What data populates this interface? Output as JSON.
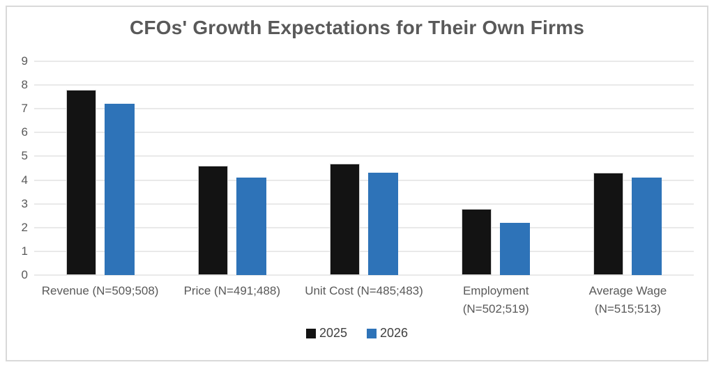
{
  "chart_data": {
    "type": "bar",
    "title": "CFOs' Growth Expectations for Their Own Firms",
    "categories": [
      "Revenue (N=509;508)",
      "Price (N=491;488)",
      "Unit Cost (N=485;483)",
      "Employment (N=502;519)",
      "Average Wage (N=515;513)"
    ],
    "category_label_lines": [
      [
        "Revenue (N=509;508)"
      ],
      [
        "Price (N=491;488)"
      ],
      [
        "Unit Cost (N=485;483)"
      ],
      [
        "Employment",
        "(N=502;519)"
      ],
      [
        "Average Wage",
        "(N=515;513)"
      ]
    ],
    "series": [
      {
        "name": "2025",
        "color": "#131313",
        "values": [
          7.8,
          4.6,
          4.7,
          2.8,
          4.3
        ]
      },
      {
        "name": "2026",
        "color": "#2e73b8",
        "values": [
          7.2,
          4.1,
          4.3,
          2.2,
          4.1
        ]
      }
    ],
    "ylim": [
      0,
      9
    ],
    "ytick_step": 1,
    "ytick_labels": [
      "0",
      "1",
      "2",
      "3",
      "4",
      "5",
      "6",
      "7",
      "8",
      "9"
    ],
    "grid": true,
    "legend_position": "bottom",
    "xlabel": "",
    "ylabel": ""
  },
  "style": {
    "title_color": "#595959",
    "axis_text_color": "#595959",
    "legend_text_color": "#404040",
    "gridline_color": "#e9e9e9",
    "frame_border_color": "#d9d9d9",
    "background_color": "#ffffff"
  }
}
